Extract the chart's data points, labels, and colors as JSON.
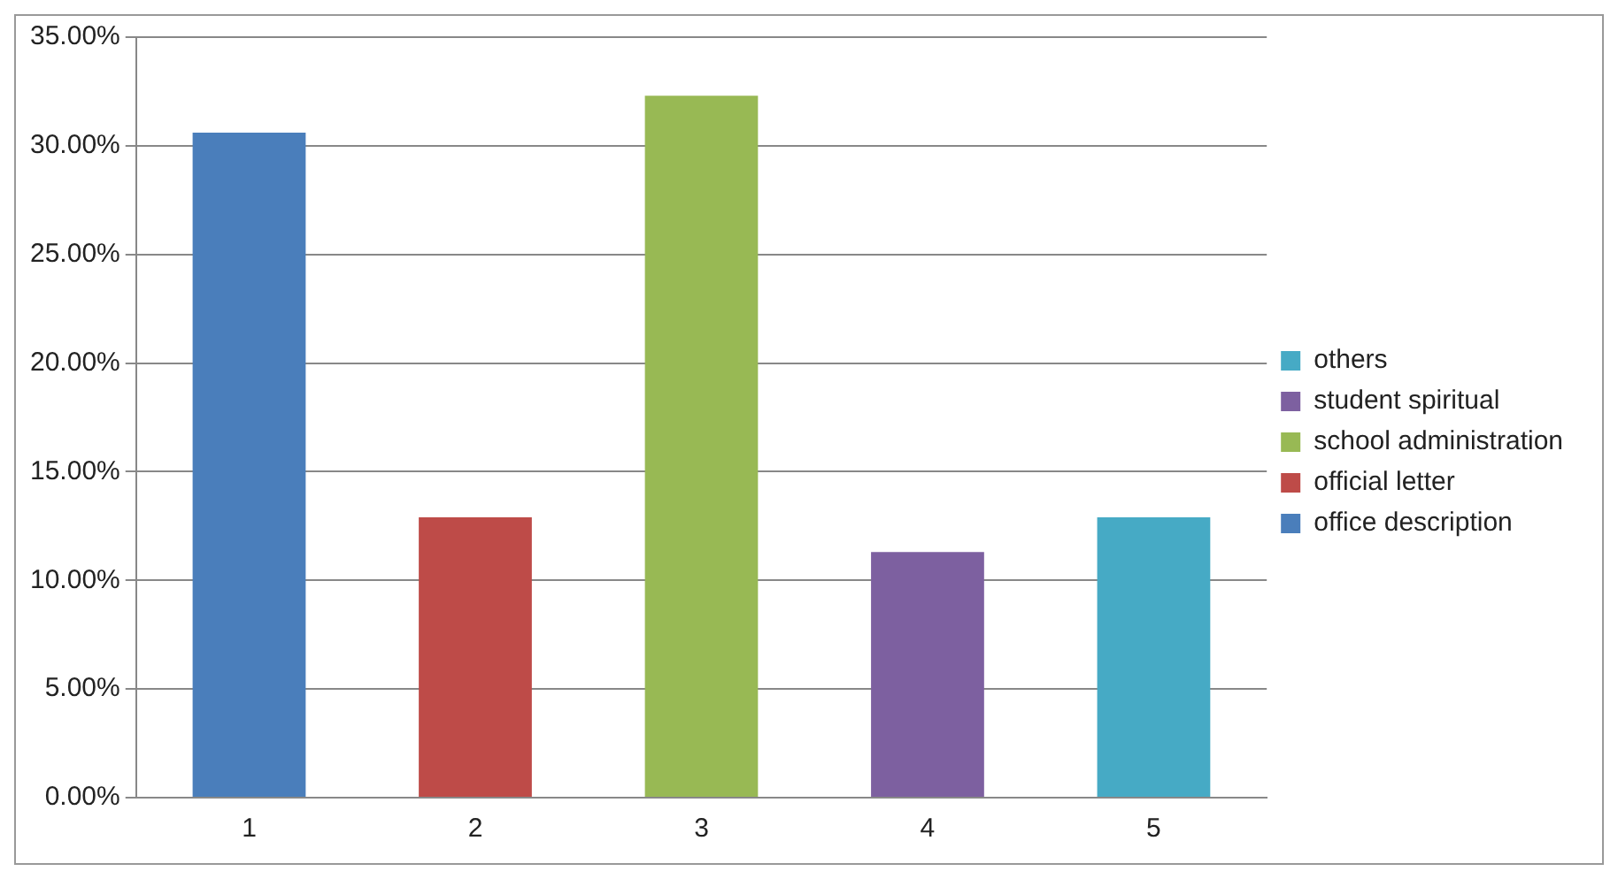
{
  "chart_data": {
    "type": "bar",
    "categories": [
      "1",
      "2",
      "3",
      "4",
      "5"
    ],
    "series": [
      {
        "name": "office description",
        "color": "#4a7ebb",
        "values": [
          30.6,
          null,
          null,
          null,
          null
        ]
      },
      {
        "name": "official letter",
        "color": "#be4b48",
        "values": [
          null,
          12.9,
          null,
          null,
          null
        ]
      },
      {
        "name": "school administration",
        "color": "#98b954",
        "values": [
          null,
          null,
          32.3,
          null,
          null
        ]
      },
      {
        "name": "student spiritual",
        "color": "#7d60a0",
        "values": [
          null,
          null,
          null,
          11.3,
          null
        ]
      },
      {
        "name": "others",
        "color": "#46aac5",
        "values": [
          null,
          null,
          null,
          null,
          12.9
        ]
      }
    ],
    "ylim": [
      0,
      35
    ],
    "yticks": [
      {
        "value": 0,
        "label": "0.00%"
      },
      {
        "value": 5,
        "label": "5.00%"
      },
      {
        "value": 10,
        "label": "10.00%"
      },
      {
        "value": 15,
        "label": "15.00%"
      },
      {
        "value": 20,
        "label": "20.00%"
      },
      {
        "value": 25,
        "label": "25.00%"
      },
      {
        "value": 30,
        "label": "30.00%"
      },
      {
        "value": 35,
        "label": "35.00%"
      }
    ],
    "grid": "y",
    "legend": "right"
  }
}
